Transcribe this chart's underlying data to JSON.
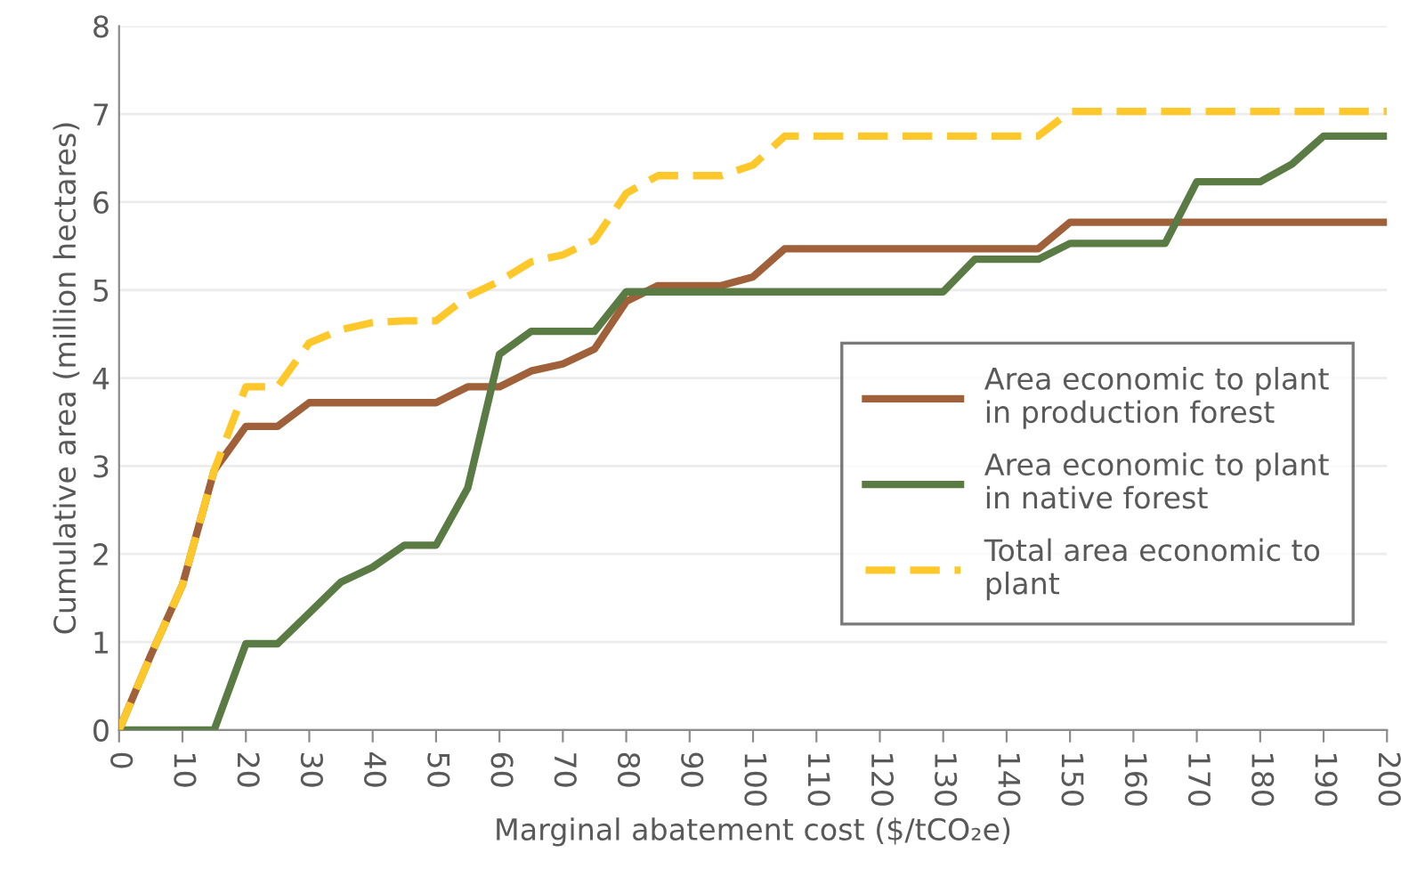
{
  "chart_data": {
    "type": "line",
    "xlabel": "Marginal abatement cost ($/tCO₂e)",
    "ylabel": "Cumulative area (million hectares)",
    "x": [
      0,
      5,
      10,
      15,
      20,
      25,
      30,
      35,
      40,
      45,
      50,
      55,
      60,
      65,
      70,
      75,
      80,
      85,
      90,
      95,
      100,
      105,
      110,
      115,
      120,
      125,
      130,
      135,
      140,
      145,
      150,
      155,
      160,
      165,
      170,
      175,
      180,
      185,
      190,
      195,
      200
    ],
    "series": [
      {
        "name": "Area economic to plant in production forest",
        "color": "#a0613a",
        "line_style": "solid",
        "values": [
          0,
          0.85,
          1.65,
          2.95,
          3.45,
          3.45,
          3.72,
          3.72,
          3.72,
          3.72,
          3.72,
          3.9,
          3.9,
          4.08,
          4.16,
          4.33,
          4.87,
          5.05,
          5.05,
          5.05,
          5.15,
          5.47,
          5.47,
          5.47,
          5.47,
          5.47,
          5.47,
          5.47,
          5.47,
          5.47,
          5.77,
          5.77,
          5.77,
          5.77,
          5.77,
          5.77,
          5.77,
          5.77,
          5.77,
          5.77,
          5.77
        ]
      },
      {
        "name": "Area economic to plant in native forest",
        "color": "#5b7b45",
        "line_style": "solid",
        "values": [
          0,
          0,
          0,
          0,
          0.98,
          0.98,
          1.33,
          1.68,
          1.85,
          2.1,
          2.1,
          2.75,
          4.27,
          4.53,
          4.53,
          4.53,
          4.98,
          4.98,
          4.98,
          4.98,
          4.98,
          4.98,
          4.98,
          4.98,
          4.98,
          4.98,
          4.98,
          5.35,
          5.35,
          5.35,
          5.53,
          5.53,
          5.53,
          5.53,
          6.23,
          6.23,
          6.23,
          6.43,
          6.75,
          6.75,
          6.75
        ]
      },
      {
        "name": "Total area economic to plant",
        "color": "#ffc82a",
        "line_style": "dashed",
        "values": [
          0,
          0.85,
          1.65,
          2.95,
          3.9,
          3.9,
          4.4,
          4.55,
          4.63,
          4.65,
          4.65,
          4.93,
          5.1,
          5.32,
          5.4,
          5.57,
          6.1,
          6.3,
          6.3,
          6.3,
          6.42,
          6.75,
          6.75,
          6.75,
          6.75,
          6.75,
          6.75,
          6.75,
          6.75,
          6.75,
          7.03,
          7.03,
          7.03,
          7.03,
          7.03,
          7.03,
          7.03,
          7.03,
          7.03,
          7.03,
          7.03
        ]
      }
    ],
    "xlim": [
      0,
      200
    ],
    "xticks": [
      0,
      10,
      20,
      30,
      40,
      50,
      60,
      70,
      80,
      90,
      100,
      110,
      120,
      130,
      140,
      150,
      160,
      170,
      180,
      190,
      200
    ],
    "ylim": [
      0,
      8
    ],
    "yticks": [
      0,
      1,
      2,
      3,
      4,
      5,
      6,
      7,
      8
    ],
    "grid": "y",
    "legend": "right",
    "marker": "none"
  }
}
